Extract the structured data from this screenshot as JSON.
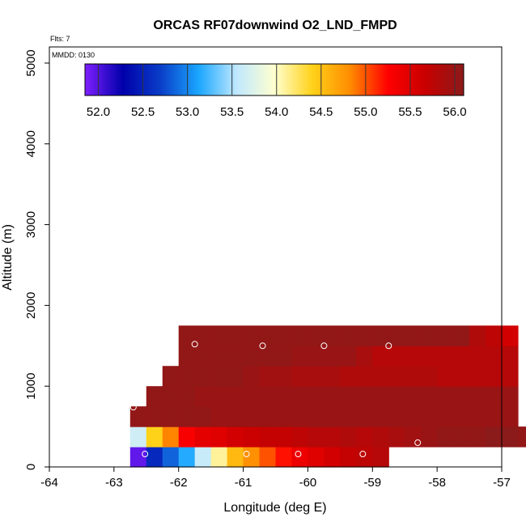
{
  "chart_data": {
    "type": "heatmap",
    "title": "ORCAS RF07downwind O2_LND_FMPD",
    "annotations": [
      "Flts: 7",
      "MMDD: 0130"
    ],
    "xlabel": "Longitude (deg E)",
    "ylabel": "Altitude (m)",
    "xlim": [
      -64,
      -57
    ],
    "ylim": [
      0,
      5200
    ],
    "x_ticks": [
      -64,
      -63,
      -62,
      -61,
      -60,
      -59,
      -58,
      -57
    ],
    "y_ticks": [
      0,
      1000,
      2000,
      3000,
      4000,
      5000
    ],
    "cell_width_deg": 0.25,
    "colorbar": {
      "placement": "top-inside",
      "min": 51.85,
      "max": 56.1,
      "ticks": [
        52.0,
        52.5,
        53.0,
        53.5,
        54.0,
        54.5,
        55.0,
        55.5,
        56.0
      ],
      "tick_labels": [
        "52.0",
        "52.5",
        "53.0",
        "53.5",
        "54.0",
        "54.5",
        "55.0",
        "55.5",
        "56.0"
      ],
      "stops": [
        "#7f1fff",
        "#0000aa",
        "#0a3ec8",
        "#1aa6ff",
        "#bfe8ff",
        "#ffffd0",
        "#ffd21a",
        "#ff8c00",
        "#ff0000",
        "#c80000",
        "#8b1a1a"
      ]
    },
    "rows": [
      {
        "y0": 0,
        "y1": 250,
        "x_start": -62.75,
        "values": [
          51.95,
          52.55,
          52.85,
          53.15,
          53.6,
          54.1,
          54.55,
          54.8,
          55.0,
          55.2,
          55.4,
          55.5,
          55.6,
          55.7,
          55.75,
          55.8
        ]
      },
      {
        "y0": 250,
        "y1": 500,
        "x_start": -62.75,
        "values": [
          53.65,
          54.4,
          54.85,
          55.3,
          55.45,
          55.5,
          55.6,
          55.65,
          55.7,
          55.7,
          55.75,
          55.8,
          55.8,
          55.85,
          55.8,
          55.85,
          55.9,
          55.95,
          56.0,
          56.05,
          56.05,
          56.05,
          56.1,
          56.1,
          56.05
        ]
      },
      {
        "y0": 500,
        "y1": 750,
        "x_start": -62.75,
        "values": [
          56.05,
          56.05,
          56.05,
          56.05,
          56.05,
          56.0,
          56.0,
          56.0,
          56.0,
          56.0,
          56.0,
          56.0,
          56.0,
          56.0,
          56.0,
          56.0,
          56.0,
          56.0,
          56.0,
          56.0,
          56.0,
          56.0,
          56.0,
          56.0
        ]
      },
      {
        "y0": 750,
        "y1": 1000,
        "x_start": -62.5,
        "values": [
          56.05,
          56.05,
          56.05,
          56.0,
          56.0,
          56.0,
          56.0,
          56.0,
          56.0,
          56.0,
          56.0,
          56.0,
          56.0,
          56.0,
          56.0,
          56.0,
          56.0,
          56.0,
          56.0,
          56.0,
          56.0,
          56.0,
          56.0
        ]
      },
      {
        "y0": 1000,
        "y1": 1250,
        "x_start": -62.25,
        "values": [
          56.05,
          56.05,
          56.05,
          56.05,
          56.05,
          56.0,
          55.95,
          55.95,
          55.9,
          55.9,
          55.9,
          55.85,
          55.85,
          55.85,
          55.85,
          55.85,
          55.85,
          55.8,
          55.8,
          55.8,
          55.8,
          55.8
        ]
      },
      {
        "y0": 1250,
        "y1": 1500,
        "x_start": -62.0,
        "values": [
          56.05,
          56.05,
          56.05,
          56.05,
          56.05,
          56.05,
          56.05,
          56.0,
          56.0,
          56.0,
          56.0,
          55.9,
          55.8,
          55.8,
          55.8,
          55.8,
          55.8,
          55.8,
          55.8,
          55.8,
          55.8
        ]
      },
      {
        "y0": 1500,
        "y1": 1750,
        "x_start": -62.0,
        "values": [
          56.05,
          56.05,
          56.05,
          56.05,
          56.05,
          56.05,
          56.05,
          56.05,
          56.05,
          56.05,
          56.05,
          56.05,
          56.05,
          56.05,
          56.05,
          56.05,
          56.05,
          56.05,
          55.85,
          55.75,
          55.6
        ]
      }
    ],
    "points": [
      {
        "x": -62.7,
        "y": 740
      },
      {
        "x": -62.52,
        "y": 160
      },
      {
        "x": -61.75,
        "y": 1520
      },
      {
        "x": -60.95,
        "y": 160
      },
      {
        "x": -60.7,
        "y": 1500
      },
      {
        "x": -60.15,
        "y": 160
      },
      {
        "x": -59.75,
        "y": 1500
      },
      {
        "x": -59.15,
        "y": 160
      },
      {
        "x": -58.75,
        "y": 1500
      },
      {
        "x": -58.3,
        "y": 300
      }
    ]
  }
}
